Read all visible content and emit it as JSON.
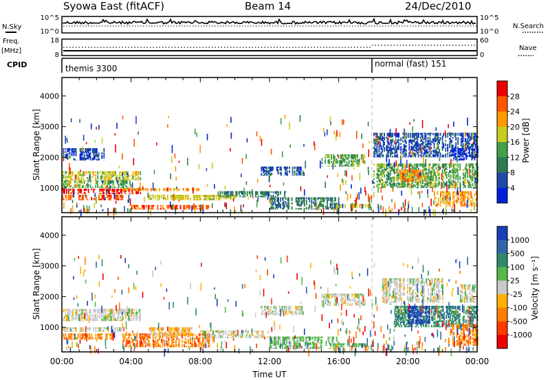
{
  "header": {
    "station": "Syowa East (fitACF)",
    "beam": "Beam 14",
    "date": "24/Dec/2010"
  },
  "noise_panel": {
    "left_label": "N.Sky",
    "left_ticks": [
      "10^5",
      "10^0"
    ],
    "right_label": "N.Search",
    "right_ticks": [
      "10^5",
      "10^0"
    ]
  },
  "freq_panel": {
    "left_label_1": "Freq.",
    "left_label_2": "[MHz]",
    "left_ticks": [
      "18",
      "8"
    ],
    "right_label": "Nave",
    "right_ticks": [
      "60",
      "0"
    ]
  },
  "cpid_panel": {
    "label": "CPID",
    "modes": [
      {
        "name": "themis 3300",
        "start_hour": 0
      },
      {
        "name": "normal (fast) 151",
        "start_hour": 18
      }
    ]
  },
  "colors": {
    "power": [
      "#0022dd",
      "#1f49a8",
      "#2e7a52",
      "#43a048",
      "#c8cc20",
      "#ff9a00",
      "#ff5500",
      "#ee0000"
    ],
    "velocity": [
      "#1a3fb8",
      "#2f66a8",
      "#2e8a6a",
      "#55b84a",
      "#c8c8c8",
      "#ffb000",
      "#ff8000",
      "#ff3a00",
      "#ee0000"
    ]
  },
  "chart_data": [
    {
      "type": "heatmap",
      "name": "power",
      "xlabel": "",
      "ylabel": "Slant Range [km]",
      "xlim": [
        0,
        24
      ],
      "ylim": [
        200,
        4600
      ],
      "yticks": [
        "1000",
        "2000",
        "3000",
        "4000"
      ],
      "colorbar_label": "Power [dB]",
      "colorbar_ticks": [
        "28",
        "24",
        "20",
        "16",
        "12",
        "8",
        "4"
      ],
      "regions": [
        {
          "t0": 0.0,
          "t1": 4.5,
          "r0": 800,
          "r1": 980,
          "level": 7
        },
        {
          "t0": 0.0,
          "t1": 3.5,
          "r0": 600,
          "r1": 780,
          "level": 6
        },
        {
          "t0": 4.0,
          "t1": 8.5,
          "r0": 300,
          "r1": 450,
          "level": 6
        },
        {
          "t0": 3.5,
          "t1": 8.0,
          "r0": 900,
          "r1": 1000,
          "level": 5
        },
        {
          "t0": 5.0,
          "t1": 10.0,
          "r0": 600,
          "r1": 780,
          "level": 4
        },
        {
          "t0": 0.0,
          "t1": 4.5,
          "r0": 1250,
          "r1": 1550,
          "level": 4
        },
        {
          "t0": 0.0,
          "t1": 4.0,
          "r0": 1000,
          "r1": 1250,
          "level": 3
        },
        {
          "t0": 0.0,
          "t1": 2.5,
          "r0": 1900,
          "r1": 2300,
          "level": 1
        },
        {
          "t0": 9.0,
          "t1": 13.0,
          "r0": 700,
          "r1": 900,
          "level": 2
        },
        {
          "t0": 11.5,
          "t1": 14.0,
          "r0": 1400,
          "r1": 1700,
          "level": 1
        },
        {
          "t0": 15.0,
          "t1": 17.5,
          "r0": 1700,
          "r1": 2100,
          "level": 3
        },
        {
          "t0": 15.5,
          "t1": 17.8,
          "r0": 350,
          "r1": 480,
          "level": 4
        },
        {
          "t0": 18.0,
          "t1": 24.0,
          "r0": 1000,
          "r1": 1800,
          "level": 3
        },
        {
          "t0": 19.5,
          "t1": 21.0,
          "r0": 1200,
          "r1": 1600,
          "level": 5
        },
        {
          "t0": 21.5,
          "t1": 24.0,
          "r0": 400,
          "r1": 900,
          "level": 5
        },
        {
          "t0": 18.0,
          "t1": 24.0,
          "r0": 2000,
          "r1": 2800,
          "level": 1
        },
        {
          "t0": 22.5,
          "t1": 24.0,
          "r0": 1900,
          "r1": 2300,
          "level": 0
        },
        {
          "t0": 12.0,
          "t1": 16.0,
          "r0": 300,
          "r1": 700,
          "level": 2
        }
      ]
    },
    {
      "type": "heatmap",
      "name": "velocity",
      "xlabel": "Time UT",
      "ylabel": "Slant Range [km]",
      "xlim": [
        0,
        24
      ],
      "ylim": [
        200,
        4600
      ],
      "xticks": [
        "00:00",
        "04:00",
        "08:00",
        "12:00",
        "16:00",
        "20:00",
        "00:00"
      ],
      "yticks": [
        "1000",
        "2000",
        "3000",
        "4000"
      ],
      "colorbar_label": "Velocity [m s⁻¹]",
      "colorbar_ticks": [
        "1000",
        "500",
        "100",
        "25",
        "-25",
        "-100",
        "-500",
        "-1000"
      ],
      "regions": [
        {
          "t0": 3.5,
          "t1": 8.5,
          "r0": 350,
          "r1": 800,
          "level": 6
        },
        {
          "t0": 5.0,
          "t1": 7.5,
          "r0": 700,
          "r1": 1000,
          "level": 5
        },
        {
          "t0": 0.0,
          "t1": 3.0,
          "r0": 600,
          "r1": 800,
          "level": 6
        },
        {
          "t0": 0.0,
          "t1": 4.5,
          "r0": 1200,
          "r1": 1600,
          "level": 4
        },
        {
          "t0": 0.0,
          "t1": 3.5,
          "r0": 850,
          "r1": 1000,
          "level": 4
        },
        {
          "t0": 8.0,
          "t1": 12.0,
          "r0": 650,
          "r1": 900,
          "level": 4
        },
        {
          "t0": 11.5,
          "t1": 14.0,
          "r0": 1400,
          "r1": 1700,
          "level": 4
        },
        {
          "t0": 15.0,
          "t1": 17.5,
          "r0": 1700,
          "r1": 2100,
          "level": 4
        },
        {
          "t0": 15.5,
          "t1": 17.8,
          "r0": 350,
          "r1": 480,
          "level": 3
        },
        {
          "t0": 19.0,
          "t1": 24.0,
          "r0": 1000,
          "r1": 1700,
          "level": 2
        },
        {
          "t0": 20.0,
          "t1": 21.2,
          "r0": 1100,
          "r1": 1700,
          "level": 0
        },
        {
          "t0": 22.5,
          "t1": 24.0,
          "r0": 400,
          "r1": 1100,
          "level": 6
        },
        {
          "t0": 18.5,
          "t1": 22.0,
          "r0": 1800,
          "r1": 2600,
          "level": 4
        },
        {
          "t0": 23.0,
          "t1": 24.0,
          "r0": 1800,
          "r1": 2400,
          "level": 4
        },
        {
          "t0": 12.0,
          "t1": 16.0,
          "r0": 300,
          "r1": 700,
          "level": 3
        }
      ]
    }
  ]
}
